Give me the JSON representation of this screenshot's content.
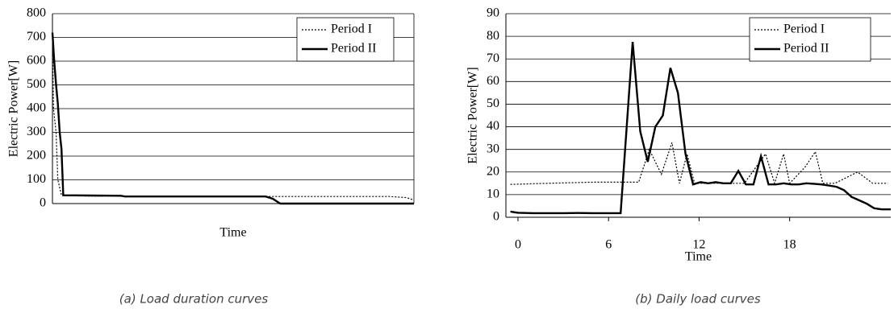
{
  "chart_data": [
    {
      "type": "line",
      "caption": "(a) Load duration curves",
      "xlabel": "Time",
      "ylabel": "Electric Power[W]",
      "xlim": [
        0,
        100
      ],
      "ylim": [
        0,
        800
      ],
      "yticks": [
        0,
        100,
        200,
        300,
        400,
        500,
        600,
        700,
        800
      ],
      "grid": true,
      "legend": "upper right",
      "series": [
        {
          "name": "Period I",
          "color": "#000000",
          "linestyle": "dotted",
          "x": [
            0,
            0.3,
            1,
            1.5,
            2.5,
            10,
            30,
            60,
            80,
            93,
            98,
            100
          ],
          "values": [
            720,
            400,
            300,
            100,
            35,
            32,
            31,
            30,
            30,
            30,
            25,
            15
          ]
        },
        {
          "name": "Period II",
          "color": "#000000",
          "linestyle": "solid",
          "x": [
            0,
            0.5,
            1,
            1.5,
            2,
            2.5,
            3,
            19,
            20,
            59,
            61,
            63,
            100
          ],
          "values": [
            720,
            600,
            500,
            420,
            300,
            230,
            35,
            33,
            30,
            30,
            20,
            0,
            0
          ]
        }
      ]
    },
    {
      "type": "line",
      "caption": "(b) Daily load curves",
      "xlabel": "Time",
      "ylabel": "Electric Power[W]",
      "xlim": [
        -0.8,
        24.7
      ],
      "ylim": [
        0,
        90
      ],
      "xticks": [
        0,
        6,
        12,
        18
      ],
      "yticks": [
        0,
        10,
        20,
        30,
        40,
        50,
        60,
        70,
        80,
        90
      ],
      "grid": true,
      "legend": "upper right",
      "series": [
        {
          "name": "Period I",
          "color": "#000000",
          "linestyle": "dotted",
          "x": [
            -0.5,
            2,
            5,
            8,
            8.7,
            9.5,
            10.2,
            10.7,
            11.2,
            11.7,
            13,
            15,
            16.4,
            17,
            17.6,
            18,
            19,
            19.7,
            20.2,
            21,
            22.5,
            23.5,
            24.5
          ],
          "values": [
            14.5,
            15,
            15.5,
            15.5,
            30,
            19,
            33,
            15,
            28,
            15,
            15,
            15,
            28,
            15,
            28,
            15,
            22,
            29,
            15,
            15,
            20,
            15,
            15
          ]
        },
        {
          "name": "Period II",
          "color": "#000000",
          "linestyle": "solid",
          "x": [
            -0.5,
            0,
            1,
            2,
            3,
            4,
            5,
            6,
            6.8,
            7.6,
            8.1,
            8.6,
            9.1,
            9.6,
            10.1,
            10.6,
            11.1,
            11.6,
            12.1,
            12.6,
            13.1,
            13.6,
            14.1,
            14.6,
            15.1,
            15.6,
            16.1,
            16.6,
            17.1,
            17.6,
            18.1,
            18.6,
            19.1,
            19.6,
            20.1,
            20.6,
            21.1,
            21.6,
            22.1,
            22.6,
            23.1,
            23.6,
            24.1,
            24.7
          ],
          "values": [
            2.5,
            2,
            1.8,
            1.8,
            1.8,
            1.9,
            1.8,
            1.8,
            1.8,
            77.5,
            38,
            24.5,
            40,
            45,
            66,
            55,
            28,
            14.5,
            15.5,
            15,
            15.5,
            15,
            15,
            20.5,
            14.5,
            14.5,
            27,
            14.5,
            14.5,
            15,
            14.5,
            14.5,
            15,
            14.8,
            14.5,
            14,
            13.5,
            12,
            9,
            7.5,
            6,
            4,
            3.5,
            3.5
          ]
        }
      ]
    }
  ]
}
